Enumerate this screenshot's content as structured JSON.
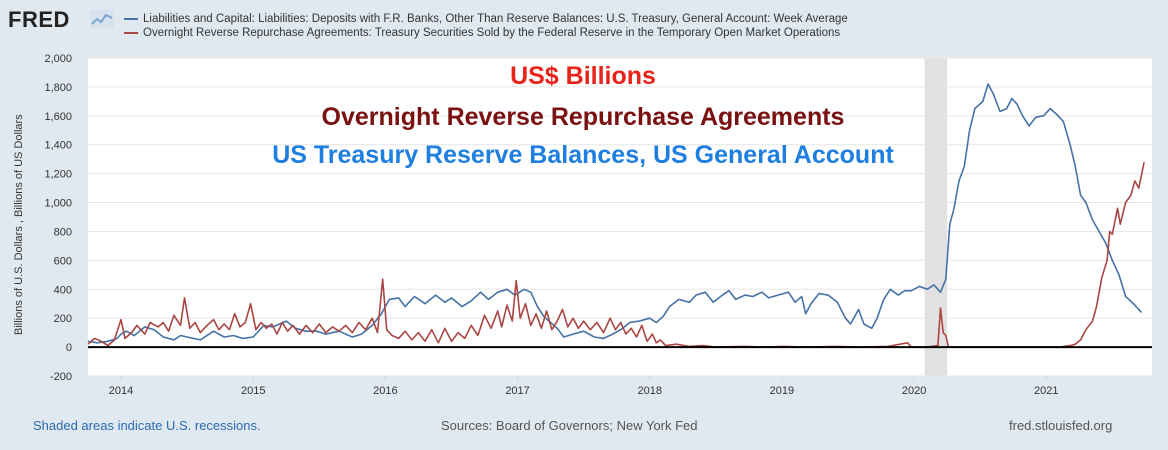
{
  "header": {
    "logo_text": "FRED",
    "logo_icon": "line-chart-icon"
  },
  "legend": {
    "items": [
      {
        "label": "Liabilities and Capital: Liabilities: Deposits with F.R. Banks, Other Than Reserve Balances: U.S. Treasury, General Account: Week Average",
        "color": "#4572a7"
      },
      {
        "label": "Overnight Reverse Repurchase Agreements: Treasury Securities Sold by the Federal Reserve in the Temporary Open Market Operations",
        "color": "#aa4643"
      }
    ]
  },
  "annotations": {
    "line1": "US$ Billions",
    "line2": "Overnight Reverse Repurchase Agreements",
    "line3": "US Treasury Reserve Balances, US General Account"
  },
  "footer": {
    "recession_note": "Shaded areas indicate U.S. recessions.",
    "sources": "Sources: Board of Governors; New York Fed",
    "site": "fred.stlouisfed.org"
  },
  "chart_data": {
    "type": "line",
    "ylabel": "Billions of U.S. Dollars , Billions of US Dollars",
    "xlabel": "",
    "ylim": [
      -200,
      2000
    ],
    "xlim": [
      2013.75,
      2021.8
    ],
    "yticks": [
      -200,
      0,
      200,
      400,
      600,
      800,
      1000,
      1200,
      1400,
      1600,
      1800,
      2000
    ],
    "ytick_labels": [
      "-200",
      "0",
      "200",
      "400",
      "600",
      "800",
      "1,000",
      "1,200",
      "1,400",
      "1,600",
      "1,800",
      "2,000"
    ],
    "xticks": [
      2014,
      2015,
      2016,
      2017,
      2018,
      2019,
      2020,
      2021
    ],
    "xtick_labels": [
      "2014",
      "2015",
      "2016",
      "2017",
      "2018",
      "2019",
      "2020",
      "2021"
    ],
    "grid": "horizontal",
    "zero_line": true,
    "recession": {
      "start": 2020.08,
      "end": 2020.25,
      "color": "#e1e1e1"
    },
    "series": [
      {
        "name": "Liabilities and Capital: Liabilities: Deposits with F.R. Banks, Other Than Reserve Balances: U.S. Treasury, General Account: Week Average",
        "color": "#4572a7",
        "points": [
          [
            2013.75,
            40
          ],
          [
            2013.82,
            30
          ],
          [
            2013.9,
            40
          ],
          [
            2013.97,
            60
          ],
          [
            2014.0,
            90
          ],
          [
            2014.04,
            110
          ],
          [
            2014.1,
            80
          ],
          [
            2014.18,
            140
          ],
          [
            2014.25,
            120
          ],
          [
            2014.32,
            70
          ],
          [
            2014.4,
            50
          ],
          [
            2014.45,
            80
          ],
          [
            2014.5,
            70
          ],
          [
            2014.6,
            50
          ],
          [
            2014.7,
            110
          ],
          [
            2014.78,
            70
          ],
          [
            2014.85,
            80
          ],
          [
            2014.92,
            60
          ],
          [
            2015.0,
            70
          ],
          [
            2015.08,
            150
          ],
          [
            2015.15,
            140
          ],
          [
            2015.25,
            180
          ],
          [
            2015.32,
            130
          ],
          [
            2015.4,
            110
          ],
          [
            2015.48,
            110
          ],
          [
            2015.55,
            90
          ],
          [
            2015.65,
            110
          ],
          [
            2015.75,
            70
          ],
          [
            2015.82,
            90
          ],
          [
            2015.9,
            150
          ],
          [
            2015.97,
            230
          ],
          [
            2016.03,
            330
          ],
          [
            2016.1,
            340
          ],
          [
            2016.15,
            280
          ],
          [
            2016.22,
            350
          ],
          [
            2016.3,
            300
          ],
          [
            2016.38,
            360
          ],
          [
            2016.45,
            310
          ],
          [
            2016.5,
            340
          ],
          [
            2016.58,
            280
          ],
          [
            2016.65,
            320
          ],
          [
            2016.72,
            380
          ],
          [
            2016.78,
            330
          ],
          [
            2016.85,
            380
          ],
          [
            2016.92,
            400
          ],
          [
            2016.98,
            360
          ],
          [
            2017.05,
            400
          ],
          [
            2017.1,
            380
          ],
          [
            2017.15,
            280
          ],
          [
            2017.2,
            210
          ],
          [
            2017.25,
            170
          ],
          [
            2017.3,
            130
          ],
          [
            2017.35,
            70
          ],
          [
            2017.42,
            90
          ],
          [
            2017.5,
            110
          ],
          [
            2017.58,
            70
          ],
          [
            2017.65,
            60
          ],
          [
            2017.72,
            90
          ],
          [
            2017.78,
            120
          ],
          [
            2017.85,
            170
          ],
          [
            2017.92,
            180
          ],
          [
            2018.0,
            200
          ],
          [
            2018.05,
            170
          ],
          [
            2018.1,
            210
          ],
          [
            2018.15,
            280
          ],
          [
            2018.22,
            330
          ],
          [
            2018.3,
            310
          ],
          [
            2018.35,
            360
          ],
          [
            2018.42,
            380
          ],
          [
            2018.48,
            310
          ],
          [
            2018.55,
            360
          ],
          [
            2018.6,
            390
          ],
          [
            2018.65,
            330
          ],
          [
            2018.72,
            360
          ],
          [
            2018.78,
            350
          ],
          [
            2018.85,
            380
          ],
          [
            2018.9,
            340
          ],
          [
            2018.97,
            360
          ],
          [
            2019.05,
            380
          ],
          [
            2019.1,
            310
          ],
          [
            2019.15,
            350
          ],
          [
            2019.18,
            230
          ],
          [
            2019.22,
            300
          ],
          [
            2019.28,
            370
          ],
          [
            2019.35,
            360
          ],
          [
            2019.42,
            310
          ],
          [
            2019.48,
            200
          ],
          [
            2019.52,
            160
          ],
          [
            2019.58,
            260
          ],
          [
            2019.62,
            160
          ],
          [
            2019.68,
            130
          ],
          [
            2019.72,
            200
          ],
          [
            2019.77,
            330
          ],
          [
            2019.82,
            400
          ],
          [
            2019.88,
            360
          ],
          [
            2019.93,
            390
          ],
          [
            2019.98,
            390
          ],
          [
            2020.04,
            420
          ],
          [
            2020.1,
            400
          ],
          [
            2020.15,
            430
          ],
          [
            2020.2,
            380
          ],
          [
            2020.24,
            470
          ],
          [
            2020.27,
            850
          ],
          [
            2020.3,
            950
          ],
          [
            2020.34,
            1150
          ],
          [
            2020.38,
            1250
          ],
          [
            2020.42,
            1500
          ],
          [
            2020.46,
            1650
          ],
          [
            2020.52,
            1700
          ],
          [
            2020.56,
            1820
          ],
          [
            2020.6,
            1750
          ],
          [
            2020.65,
            1630
          ],
          [
            2020.7,
            1650
          ],
          [
            2020.74,
            1720
          ],
          [
            2020.78,
            1680
          ],
          [
            2020.82,
            1600
          ],
          [
            2020.87,
            1530
          ],
          [
            2020.92,
            1590
          ],
          [
            2020.98,
            1600
          ],
          [
            2021.03,
            1650
          ],
          [
            2021.08,
            1610
          ],
          [
            2021.13,
            1560
          ],
          [
            2021.18,
            1400
          ],
          [
            2021.22,
            1250
          ],
          [
            2021.26,
            1050
          ],
          [
            2021.3,
            1000
          ],
          [
            2021.35,
            880
          ],
          [
            2021.4,
            800
          ],
          [
            2021.45,
            720
          ],
          [
            2021.5,
            600
          ],
          [
            2021.55,
            500
          ],
          [
            2021.6,
            350
          ],
          [
            2021.66,
            300
          ],
          [
            2021.72,
            240
          ]
        ]
      },
      {
        "name": "Overnight Reverse Repurchase Agreements: Treasury Securities Sold by the Federal Reserve in the Temporary Open Market Operations",
        "color": "#aa4643",
        "points": [
          [
            2013.75,
            20
          ],
          [
            2013.8,
            60
          ],
          [
            2013.85,
            40
          ],
          [
            2013.9,
            10
          ],
          [
            2013.95,
            50
          ],
          [
            2014.0,
            190
          ],
          [
            2014.03,
            60
          ],
          [
            2014.08,
            100
          ],
          [
            2014.12,
            150
          ],
          [
            2014.18,
            90
          ],
          [
            2014.22,
            170
          ],
          [
            2014.28,
            140
          ],
          [
            2014.32,
            170
          ],
          [
            2014.36,
            110
          ],
          [
            2014.4,
            220
          ],
          [
            2014.45,
            150
          ],
          [
            2014.48,
            340
          ],
          [
            2014.52,
            130
          ],
          [
            2014.56,
            170
          ],
          [
            2014.6,
            100
          ],
          [
            2014.65,
            150
          ],
          [
            2014.7,
            190
          ],
          [
            2014.74,
            120
          ],
          [
            2014.78,
            160
          ],
          [
            2014.82,
            120
          ],
          [
            2014.86,
            230
          ],
          [
            2014.9,
            140
          ],
          [
            2014.94,
            170
          ],
          [
            2014.98,
            300
          ],
          [
            2015.02,
            120
          ],
          [
            2015.06,
            170
          ],
          [
            2015.1,
            130
          ],
          [
            2015.14,
            160
          ],
          [
            2015.18,
            90
          ],
          [
            2015.22,
            170
          ],
          [
            2015.26,
            110
          ],
          [
            2015.3,
            150
          ],
          [
            2015.35,
            90
          ],
          [
            2015.4,
            150
          ],
          [
            2015.45,
            100
          ],
          [
            2015.5,
            160
          ],
          [
            2015.55,
            100
          ],
          [
            2015.6,
            140
          ],
          [
            2015.65,
            110
          ],
          [
            2015.7,
            150
          ],
          [
            2015.75,
            100
          ],
          [
            2015.8,
            170
          ],
          [
            2015.85,
            120
          ],
          [
            2015.9,
            200
          ],
          [
            2015.94,
            100
          ],
          [
            2015.98,
            470
          ],
          [
            2016.01,
            120
          ],
          [
            2016.05,
            80
          ],
          [
            2016.1,
            60
          ],
          [
            2016.15,
            110
          ],
          [
            2016.2,
            50
          ],
          [
            2016.25,
            100
          ],
          [
            2016.3,
            40
          ],
          [
            2016.35,
            120
          ],
          [
            2016.4,
            30
          ],
          [
            2016.45,
            130
          ],
          [
            2016.5,
            40
          ],
          [
            2016.55,
            100
          ],
          [
            2016.6,
            60
          ],
          [
            2016.65,
            150
          ],
          [
            2016.7,
            80
          ],
          [
            2016.75,
            220
          ],
          [
            2016.8,
            130
          ],
          [
            2016.85,
            250
          ],
          [
            2016.88,
            140
          ],
          [
            2016.92,
            290
          ],
          [
            2016.96,
            180
          ],
          [
            2016.99,
            460
          ],
          [
            2017.02,
            200
          ],
          [
            2017.06,
            300
          ],
          [
            2017.1,
            150
          ],
          [
            2017.14,
            230
          ],
          [
            2017.18,
            130
          ],
          [
            2017.22,
            250
          ],
          [
            2017.26,
            120
          ],
          [
            2017.3,
            180
          ],
          [
            2017.34,
            260
          ],
          [
            2017.38,
            140
          ],
          [
            2017.42,
            200
          ],
          [
            2017.46,
            130
          ],
          [
            2017.5,
            180
          ],
          [
            2017.55,
            120
          ],
          [
            2017.6,
            170
          ],
          [
            2017.65,
            100
          ],
          [
            2017.7,
            200
          ],
          [
            2017.74,
            120
          ],
          [
            2017.78,
            170
          ],
          [
            2017.82,
            90
          ],
          [
            2017.86,
            130
          ],
          [
            2017.9,
            70
          ],
          [
            2017.94,
            150
          ],
          [
            2017.98,
            40
          ],
          [
            2018.02,
            90
          ],
          [
            2018.05,
            30
          ],
          [
            2018.08,
            50
          ],
          [
            2018.12,
            10
          ],
          [
            2018.2,
            20
          ],
          [
            2018.3,
            5
          ],
          [
            2018.4,
            10
          ],
          [
            2018.5,
            0
          ],
          [
            2018.7,
            5
          ],
          [
            2018.9,
            0
          ],
          [
            2019.0,
            5
          ],
          [
            2019.2,
            0
          ],
          [
            2019.4,
            5
          ],
          [
            2019.6,
            0
          ],
          [
            2019.8,
            5
          ],
          [
            2019.95,
            30
          ],
          [
            2019.98,
            0
          ],
          [
            2020.1,
            0
          ],
          [
            2020.18,
            10
          ],
          [
            2020.2,
            270
          ],
          [
            2020.22,
            100
          ],
          [
            2020.24,
            80
          ],
          [
            2020.26,
            0
          ],
          [
            2020.4,
            0
          ],
          [
            2020.6,
            0
          ],
          [
            2020.8,
            0
          ],
          [
            2021.0,
            0
          ],
          [
            2021.1,
            0
          ],
          [
            2021.18,
            10
          ],
          [
            2021.22,
            20
          ],
          [
            2021.26,
            50
          ],
          [
            2021.3,
            120
          ],
          [
            2021.35,
            180
          ],
          [
            2021.38,
            280
          ],
          [
            2021.42,
            480
          ],
          [
            2021.46,
            600
          ],
          [
            2021.48,
            800
          ],
          [
            2021.5,
            780
          ],
          [
            2021.54,
            960
          ],
          [
            2021.56,
            850
          ],
          [
            2021.6,
            1000
          ],
          [
            2021.64,
            1050
          ],
          [
            2021.67,
            1150
          ],
          [
            2021.7,
            1100
          ],
          [
            2021.74,
            1280
          ]
        ]
      }
    ]
  }
}
